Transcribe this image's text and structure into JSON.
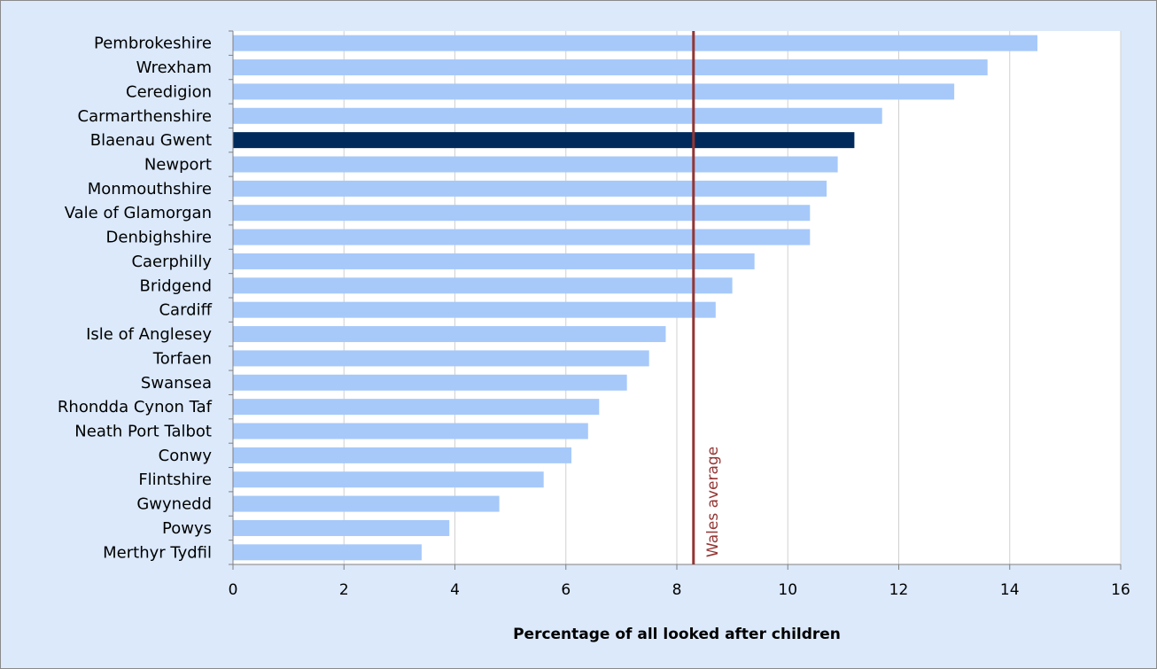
{
  "chart_data": {
    "type": "bar",
    "orientation": "horizontal",
    "title": "",
    "xlabel": "Percentage of all looked after children",
    "ylabel": "",
    "xlim": [
      0,
      16
    ],
    "xticks": [
      0,
      2,
      4,
      6,
      8,
      10,
      12,
      14,
      16
    ],
    "grid": "vertical",
    "categories": [
      "Pembrokeshire",
      "Wrexham",
      "Ceredigion",
      "Carmarthenshire",
      "Blaenau Gwent",
      "Newport",
      "Monmouthshire",
      "Vale of Glamorgan",
      "Denbighshire",
      "Caerphilly",
      "Bridgend",
      "Cardiff",
      "Isle of Anglesey",
      "Torfaen",
      "Swansea",
      "Rhondda Cynon Taf",
      "Neath Port Talbot",
      "Conwy",
      "Flintshire",
      "Gwynedd",
      "Powys",
      "Merthyr Tydfil"
    ],
    "values": [
      14.5,
      13.6,
      13.0,
      11.7,
      11.2,
      10.9,
      10.7,
      10.4,
      10.4,
      9.4,
      9.0,
      8.7,
      7.8,
      7.5,
      7.1,
      6.6,
      6.4,
      6.1,
      5.6,
      4.8,
      3.9,
      3.4
    ],
    "highlight": "Blaenau Gwent",
    "reference_line": {
      "label": "Wales average",
      "value": 8.3
    },
    "colors": {
      "bar": "#a6c9fa",
      "highlight": "#002a5c",
      "reference": "#943634",
      "grid": "#d0d0d0",
      "axis": "#808080",
      "background": "#dbe9fb",
      "plot_background": "#ffffff"
    }
  }
}
